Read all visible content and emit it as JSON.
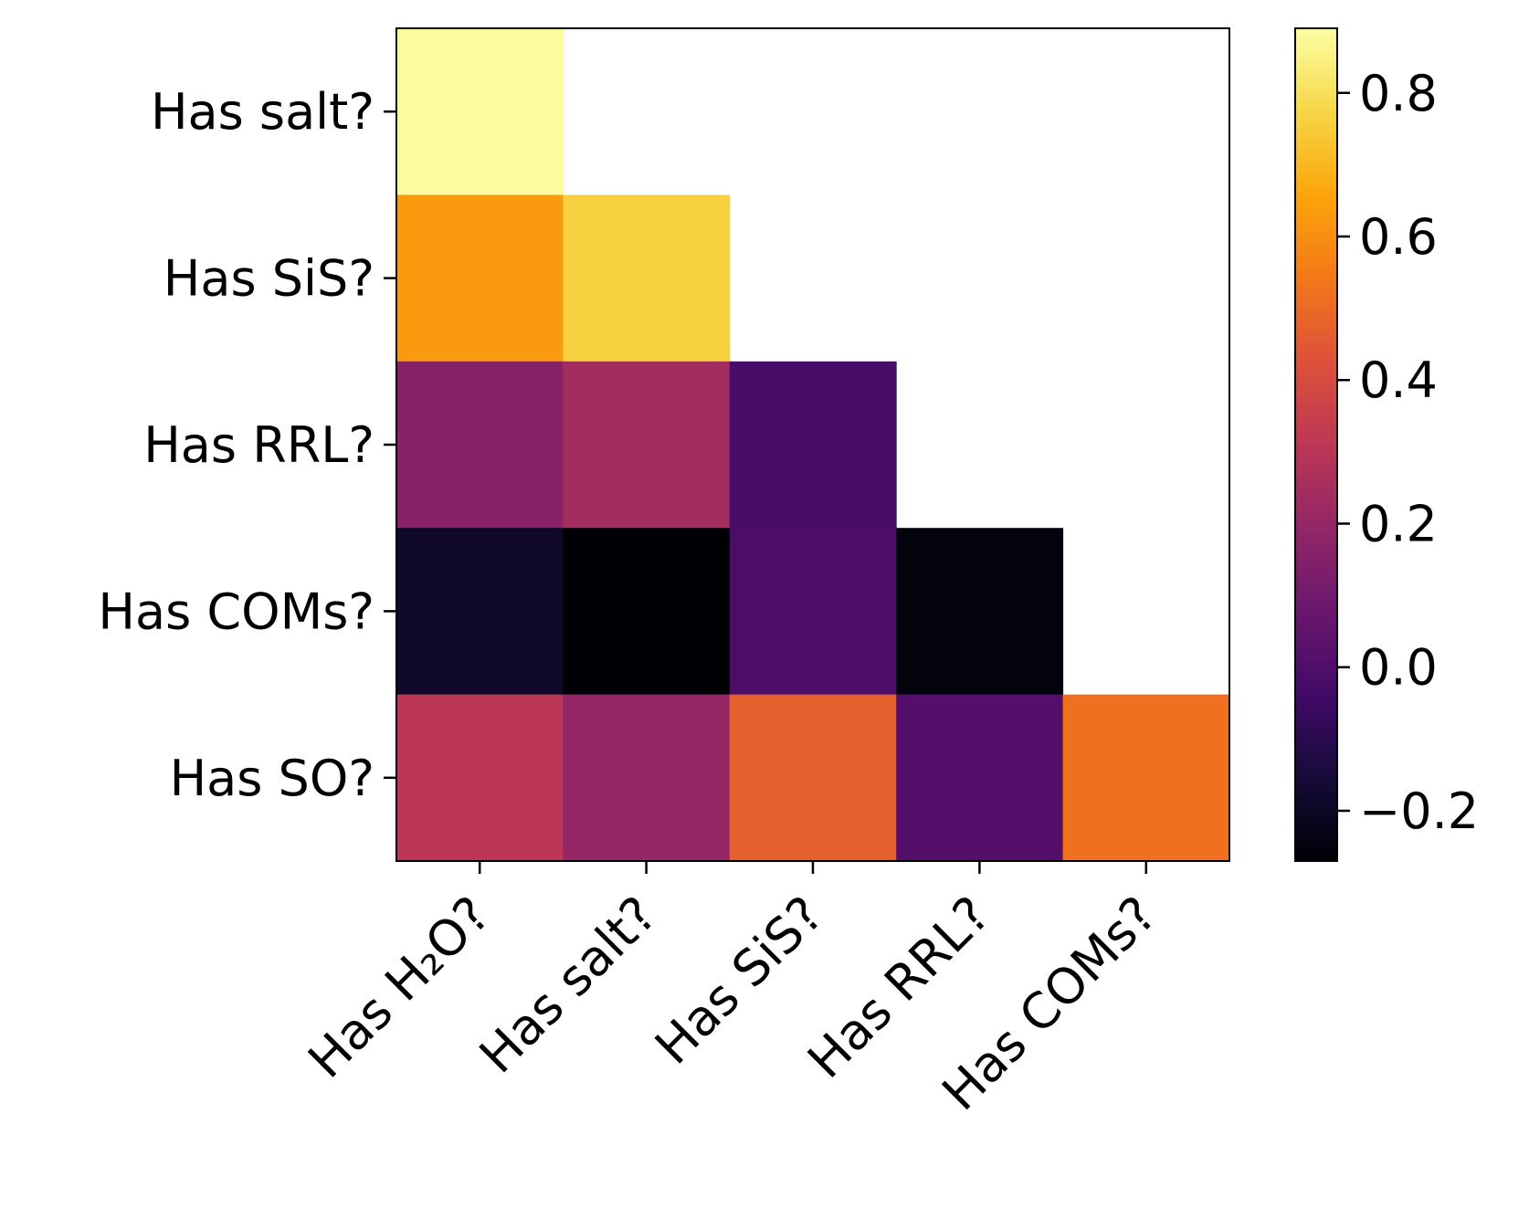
{
  "chart_data": {
    "type": "heatmap",
    "title": "",
    "xlabel": "",
    "ylabel": "",
    "x_categories": [
      "Has H₂O?",
      "Has salt?",
      "Has SiS?",
      "Has RRL?",
      "Has COMs?"
    ],
    "y_categories": [
      "Has salt?",
      "Has SiS?",
      "Has RRL?",
      "Has COMs?",
      "Has SO?"
    ],
    "matrix": [
      [
        0.88,
        null,
        null,
        null,
        null
      ],
      [
        0.63,
        0.76,
        null,
        null,
        null
      ],
      [
        0.16,
        0.24,
        -0.02,
        null,
        null
      ],
      [
        -0.19,
        -0.27,
        -0.01,
        -0.25,
        null
      ],
      [
        0.31,
        0.2,
        0.47,
        0.01,
        0.52
      ]
    ],
    "colormap": "inferno",
    "colorbar": {
      "range": [
        -0.27,
        0.89
      ],
      "ticks": [
        -0.2,
        0.0,
        0.2,
        0.4,
        0.6,
        0.8
      ],
      "tick_labels": [
        "−0.2",
        "0.0",
        "0.2",
        "0.4",
        "0.6",
        "0.8"
      ],
      "position": "right"
    },
    "grid": false
  }
}
